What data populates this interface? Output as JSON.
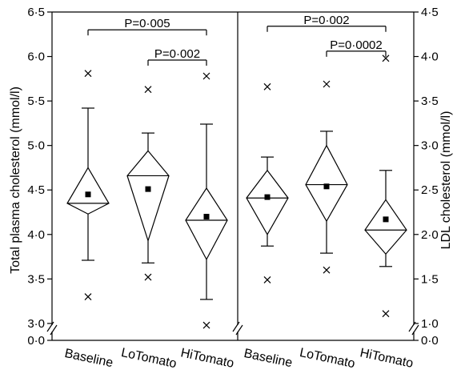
{
  "chart_data": {
    "type": "box",
    "panels": [
      {
        "ylabel": "Total plasma cholesterol (mmol/l)",
        "axis_side": "left",
        "yticks": [
          "6·5",
          "6·0",
          "5·5",
          "5·0",
          "4·5",
          "4·0",
          "3·5",
          "3·0"
        ],
        "ytick_values": [
          6.5,
          6.0,
          5.5,
          5.0,
          4.5,
          4.0,
          3.5,
          3.0
        ],
        "zero_tick": "0·0",
        "ylim": [
          2.9,
          6.5
        ],
        "categories": [
          "Baseline",
          "LoTomato",
          "HiTomato"
        ],
        "boxes": [
          {
            "whisker_low": 3.71,
            "ci_low": 4.23,
            "median": 4.35,
            "ci_high": 4.75,
            "whisker_high": 5.42,
            "mean": 4.45,
            "outlier_low": 3.3,
            "outlier_high": 5.81
          },
          {
            "whisker_low": 3.68,
            "ci_low": 3.93,
            "median": 4.66,
            "ci_high": 4.94,
            "whisker_high": 5.14,
            "mean": 4.51,
            "outlier_low": 3.52,
            "outlier_high": 5.63
          },
          {
            "whisker_low": 3.27,
            "ci_low": 3.72,
            "median": 4.16,
            "ci_high": 4.52,
            "whisker_high": 5.24,
            "mean": 4.2,
            "outlier_low": 2.98,
            "outlier_high": 5.78
          }
        ],
        "comparisons": [
          {
            "label": "P=0·005",
            "from": 0,
            "to": 2,
            "level": 6.3
          },
          {
            "label": "P=0·002",
            "from": 1,
            "to": 2,
            "level": 5.96
          }
        ]
      },
      {
        "ylabel": "LDL cholesterol (mmol/l)",
        "axis_side": "right",
        "yticks": [
          "4·5",
          "4·0",
          "3·5",
          "3·0",
          "2·5",
          "2·0",
          "1·5",
          "1·0"
        ],
        "ytick_values": [
          4.5,
          4.0,
          3.5,
          3.0,
          2.5,
          2.0,
          1.5,
          1.0
        ],
        "zero_tick": "0·0",
        "ylim": [
          0.9,
          4.5
        ],
        "categories": [
          "Baseline",
          "LoTomato",
          "HiTomato"
        ],
        "boxes": [
          {
            "whisker_low": 1.87,
            "ci_low": 2.0,
            "median": 2.41,
            "ci_high": 2.72,
            "whisker_high": 2.87,
            "mean": 2.42,
            "outlier_low": 1.49,
            "outlier_high": 3.66
          },
          {
            "whisker_low": 1.79,
            "ci_low": 2.15,
            "median": 2.56,
            "ci_high": 3.0,
            "whisker_high": 3.16,
            "mean": 2.54,
            "outlier_low": 1.6,
            "outlier_high": 3.69
          },
          {
            "whisker_low": 1.64,
            "ci_low": 1.78,
            "median": 2.05,
            "ci_high": 2.39,
            "whisker_high": 2.72,
            "mean": 2.17,
            "outlier_low": 1.11,
            "outlier_high": 3.98
          }
        ],
        "comparisons": [
          {
            "label": "P=0·002",
            "from": 0,
            "to": 2,
            "level": 4.34
          },
          {
            "label": "P=0·0002",
            "from": 1,
            "to": 2,
            "level": 4.06
          }
        ]
      }
    ]
  }
}
